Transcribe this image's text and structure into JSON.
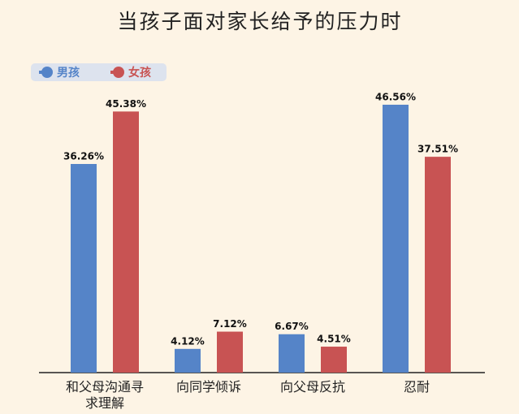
{
  "chart_data": {
    "type": "bar",
    "title": "当孩子面对家长给予的压力时",
    "categories": [
      "和父母沟通寻求理解",
      "向同学倾诉",
      "向父母反抗",
      "忍耐"
    ],
    "series": [
      {
        "name": "男孩",
        "color": "#5584c8",
        "values": [
          36.26,
          4.12,
          6.67,
          46.56
        ],
        "value_labels": [
          "36.26%",
          "4.12%",
          "6.67%",
          "46.56%"
        ]
      },
      {
        "name": "女孩",
        "color": "#c85353",
        "values": [
          45.38,
          7.12,
          4.51,
          37.51
        ],
        "value_labels": [
          "45.38%",
          "7.12%",
          "4.51%",
          "37.51%"
        ]
      }
    ],
    "legend": "top-left"
  }
}
